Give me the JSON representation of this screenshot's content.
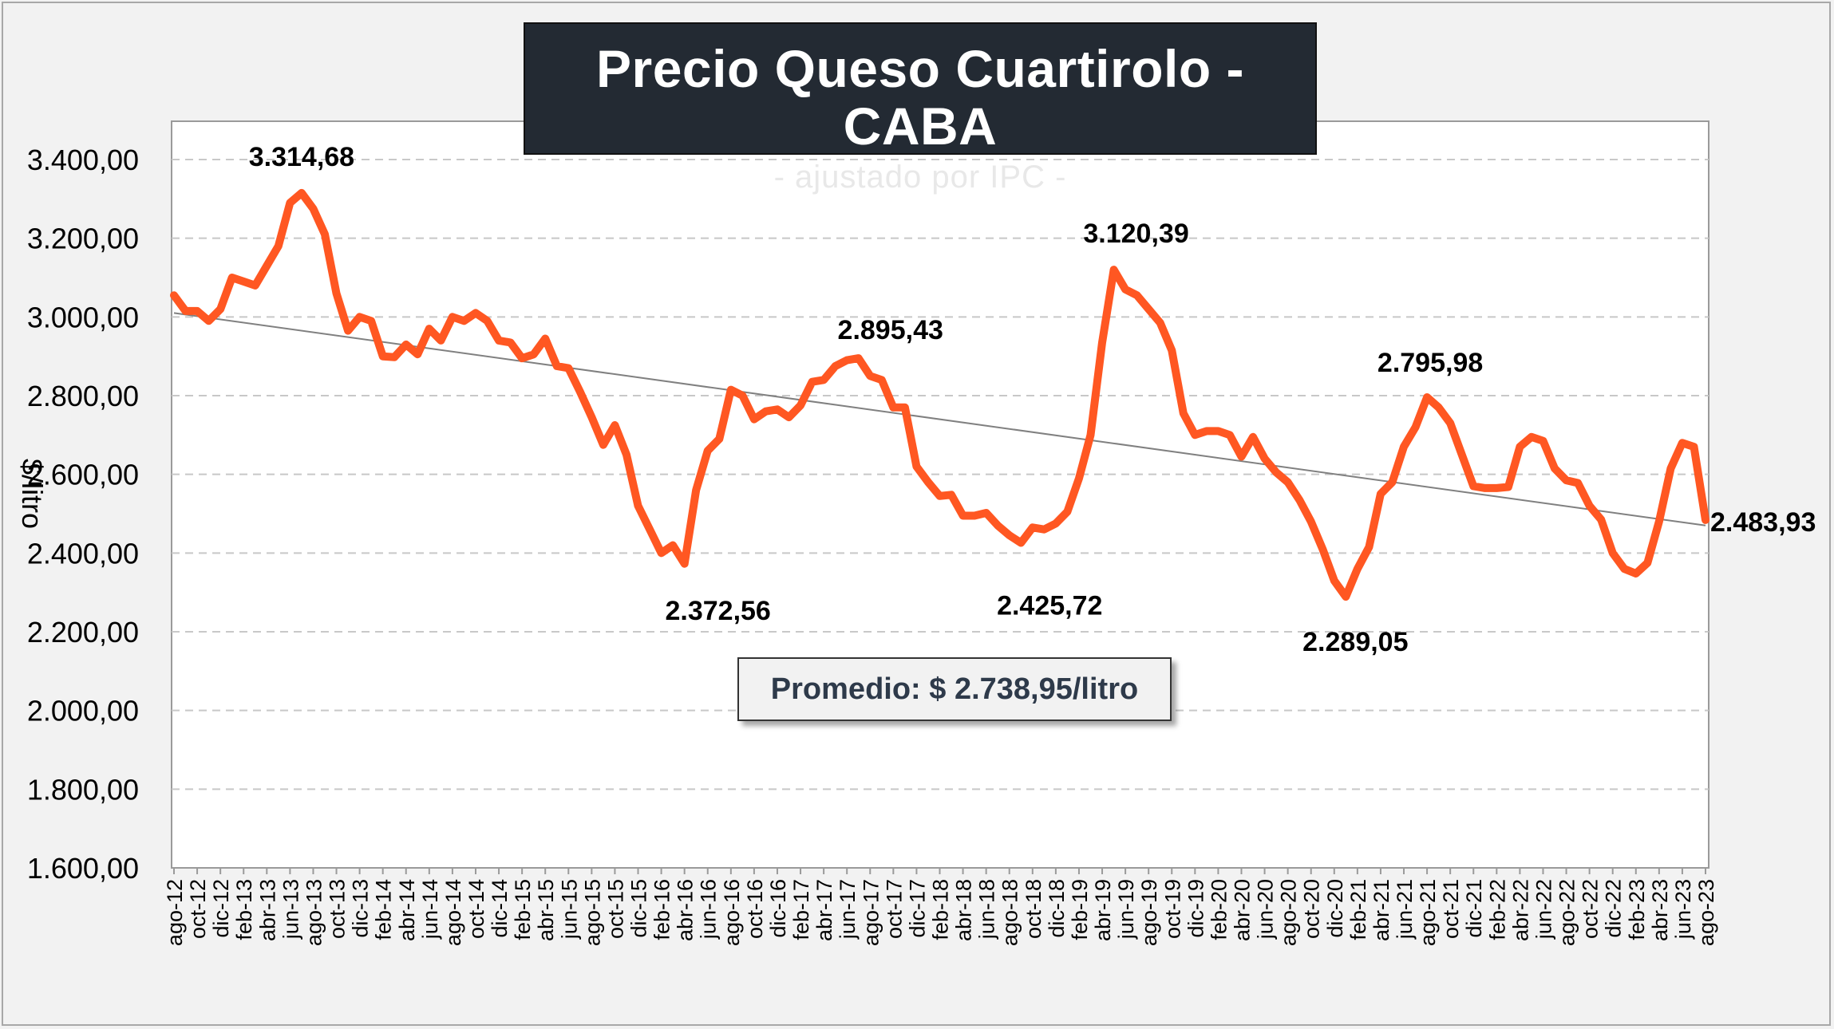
{
  "title": "Precio Queso Cuartirolo - CABA",
  "subtitle": "- ajustado por IPC -",
  "average_label": "Promedio: $ 2.738,95/litro",
  "colors": {
    "series": "#ff5722",
    "trend": "#808080",
    "title_bg": "#232a33",
    "grid": "#c8c8c8"
  },
  "chart_data": {
    "type": "line",
    "title": "Precio Queso Cuartirolo - CABA",
    "subtitle": "- ajustado por IPC -",
    "xlabel": "",
    "ylabel": "$/litro",
    "ylim": [
      1600,
      3400
    ],
    "yticks": [
      1600,
      1800,
      2000,
      2200,
      2400,
      2600,
      2800,
      3000,
      3200,
      3400
    ],
    "ytick_labels": [
      "1.600,00",
      "1.800,00",
      "2.000,00",
      "2.200,00",
      "2.400,00",
      "2.600,00",
      "2.800,00",
      "3.000,00",
      "3.200,00",
      "3.400,00"
    ],
    "grid": true,
    "legend": "none",
    "xtick_labels": [
      "ago-12",
      "oct-12",
      "dic-12",
      "feb-13",
      "abr-13",
      "jun-13",
      "ago-13",
      "oct-13",
      "dic-13",
      "feb-14",
      "abr-14",
      "jun-14",
      "ago-14",
      "oct-14",
      "dic-14",
      "feb-15",
      "abr-15",
      "jun-15",
      "ago-15",
      "oct-15",
      "dic-15",
      "feb-16",
      "abr-16",
      "jun-16",
      "ago-16",
      "oct-16",
      "dic-16",
      "feb-17",
      "abr-17",
      "jun-17",
      "ago-17",
      "oct-17",
      "dic-17",
      "feb-18",
      "abr-18",
      "jun-18",
      "ago-18",
      "oct-18",
      "dic-18",
      "feb-19",
      "abr-19",
      "jun-19",
      "ago-19",
      "oct-19",
      "dic-19",
      "feb-20",
      "abr-20",
      "jun-20",
      "ago-20",
      "oct-20",
      "dic-20",
      "feb-21",
      "abr-21",
      "jun-21",
      "ago-21",
      "oct-21",
      "dic-21",
      "feb-22",
      "abr-22",
      "jun-22",
      "ago-22",
      "oct-22",
      "dic-22",
      "feb-23",
      "abr-23",
      "jun-23",
      "ago-23"
    ],
    "series": [
      {
        "name": "",
        "start": "ago-12",
        "frequency": "monthly",
        "values": [
          3055,
          3015,
          3015,
          2990,
          3020,
          3100,
          3090,
          3080,
          3130,
          3180,
          3290,
          3315,
          3275,
          3210,
          3060,
          2965,
          3000,
          2990,
          2900,
          2898,
          2930,
          2905,
          2970,
          2940,
          3000,
          2990,
          3010,
          2990,
          2940,
          2935,
          2895,
          2905,
          2945,
          2875,
          2870,
          2810,
          2745,
          2675,
          2725,
          2650,
          2520,
          2460,
          2400,
          2420,
          2373,
          2560,
          2660,
          2690,
          2815,
          2800,
          2740,
          2760,
          2765,
          2745,
          2775,
          2835,
          2840,
          2875,
          2890,
          2895,
          2850,
          2840,
          2770,
          2770,
          2620,
          2580,
          2545,
          2548,
          2495,
          2495,
          2502,
          2470,
          2445,
          2426,
          2465,
          2460,
          2475,
          2505,
          2590,
          2700,
          2935,
          3120,
          3070,
          3055,
          3020,
          2985,
          2915,
          2755,
          2700,
          2710,
          2710,
          2700,
          2645,
          2695,
          2640,
          2605,
          2580,
          2535,
          2480,
          2410,
          2330,
          2289,
          2360,
          2415,
          2550,
          2580,
          2670,
          2720,
          2796,
          2770,
          2730,
          2650,
          2570,
          2565,
          2565,
          2568,
          2670,
          2695,
          2685,
          2615,
          2585,
          2578,
          2520,
          2485,
          2400,
          2360,
          2348,
          2375,
          2480,
          2615,
          2680,
          2670,
          2484
        ]
      }
    ],
    "trendline": {
      "type": "linear",
      "start_value": 3010,
      "end_value": 2470
    },
    "annotations": [
      {
        "label": "3.314,68",
        "index": 11,
        "value": 3314.68
      },
      {
        "label": "2.372,56",
        "index": 44,
        "value": 2372.56
      },
      {
        "label": "2.895,43",
        "index": 59,
        "value": 2895.43
      },
      {
        "label": "2.425,72",
        "index": 73,
        "value": 2425.72
      },
      {
        "label": "3.120,39",
        "index": 81,
        "value": 3120.39
      },
      {
        "label": "2.289,05",
        "index": 101,
        "value": 2289.05
      },
      {
        "label": "2.795,98",
        "index": 108,
        "value": 2795.98
      },
      {
        "label": "2.483,93",
        "index": 132,
        "value": 2483.93
      }
    ]
  }
}
